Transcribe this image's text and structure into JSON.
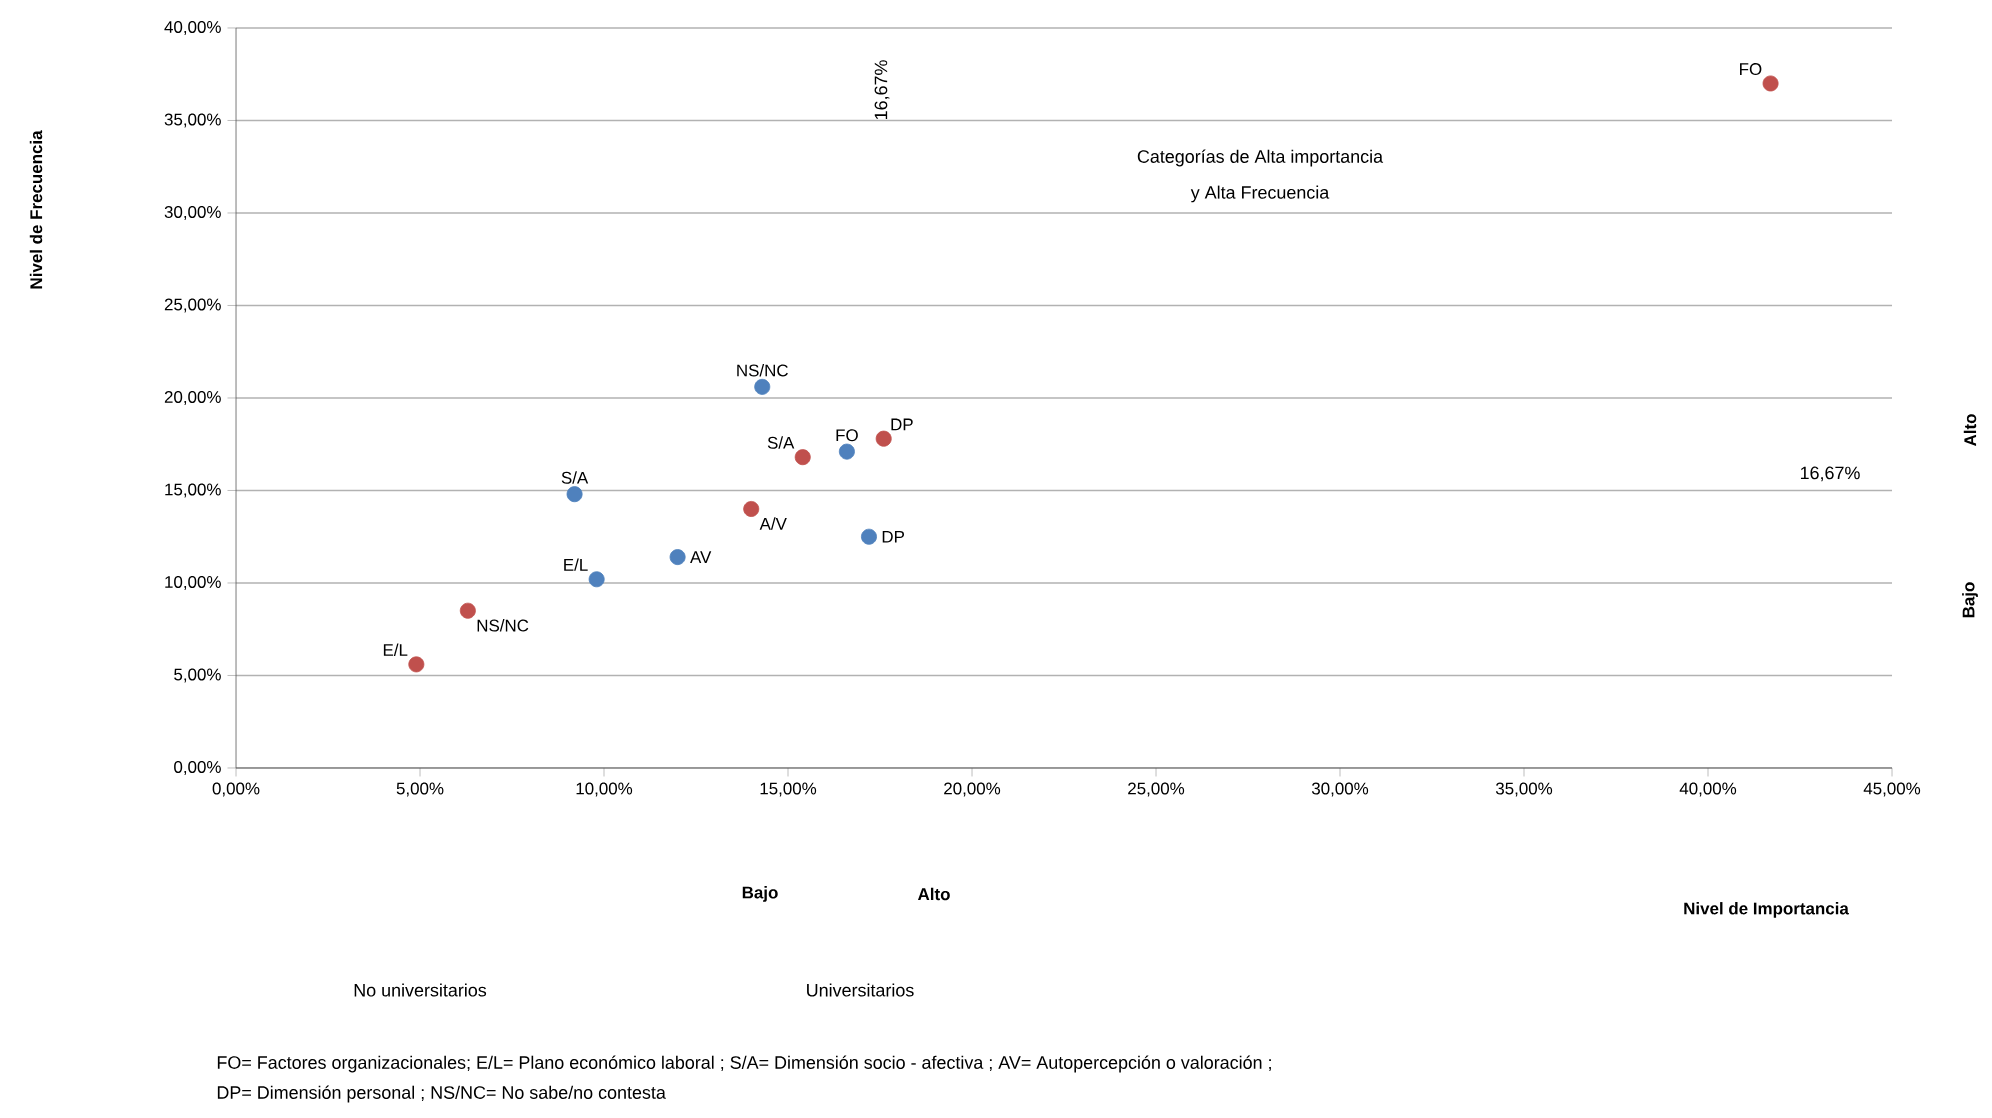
{
  "chart_data": {
    "type": "scatter",
    "series": [
      {
        "color": "#4f81bd",
        "x": [
          14.3,
          16.6,
          9.2,
          17.2,
          12.0,
          9.8
        ],
        "values": [
          20.6,
          17.1,
          14.8,
          12.5,
          11.4,
          10.2
        ]
      },
      {
        "color": "#c0504d",
        "x": [
          41.7,
          15.4,
          17.6,
          14.0,
          6.3,
          4.9
        ],
        "values": [
          37.0,
          16.8,
          17.8,
          14.0,
          8.5,
          5.6
        ]
      }
    ],
    "xlim": [
      0,
      45
    ],
    "ylim": [
      0,
      40
    ],
    "xticks": [
      {
        "value": 0,
        "label": "0,00%"
      },
      {
        "value": 5,
        "label": "5,00%"
      },
      {
        "value": 10,
        "label": "10,00%"
      },
      {
        "value": 15,
        "label": "15,00%"
      },
      {
        "value": 20,
        "label": "20,00%"
      },
      {
        "value": 25,
        "label": "25,00%"
      },
      {
        "value": 30,
        "label": "30,00%"
      },
      {
        "value": 35,
        "label": "35,00%"
      },
      {
        "value": 40,
        "label": "40,00%"
      },
      {
        "value": 45,
        "label": "45,00%"
      }
    ],
    "yticks": [
      {
        "value": 0,
        "label": "0,00%"
      },
      {
        "value": 5,
        "label": "5,00%"
      },
      {
        "value": 10,
        "label": "10,00%"
      },
      {
        "value": 15,
        "label": "15,00%"
      },
      {
        "value": 20,
        "label": "20,00%"
      },
      {
        "value": 25,
        "label": "25,00%"
      },
      {
        "value": 30,
        "label": "30,00%"
      },
      {
        "value": 35,
        "label": "35,00%"
      },
      {
        "value": 40,
        "label": "40,00%"
      }
    ],
    "grid": "y",
    "marker": "circle",
    "annotations": [
      {
        "text": "NS/NC",
        "x": 14.3,
        "y": 20.6
      },
      {
        "text": "FO",
        "x": 16.6,
        "y": 17.1
      },
      {
        "text": "S/A",
        "x": 9.2,
        "y": 14.8
      },
      {
        "text": "DP",
        "x": 17.2,
        "y": 12.5
      },
      {
        "text": "AV",
        "x": 12.0,
        "y": 11.4
      },
      {
        "text": "E/L",
        "x": 9.8,
        "y": 10.2
      },
      {
        "text": "FO",
        "x": 41.7,
        "y": 37.0
      },
      {
        "text": "S/A",
        "x": 15.4,
        "y": 16.8
      },
      {
        "text": "DP",
        "x": 17.6,
        "y": 17.8
      },
      {
        "text": "A/V",
        "x": 14.0,
        "y": 14.0
      },
      {
        "text": "NS/NC",
        "x": 6.3,
        "y": 8.5
      },
      {
        "text": "E/L",
        "x": 4.9,
        "y": 5.6
      },
      "16,67%",
      "Categorías de Alta importancia",
      "y Alta Frecuencia",
      "16,67%",
      "Alto",
      "Bajo",
      "Bajo",
      "Alto",
      "No universitarios",
      "Universitarios",
      "FO= Factores organizacionales; E/L= Plano económico laboral ; S/A= Dimensión socio - afectiva ; AV= Autopercepción  o valoración ;",
      "DP= Dimensión personal ;  NS/NC= No sabe/no contesta",
      "Nivel de Frecuencia",
      "Nivel de Importancia"
    ]
  }
}
